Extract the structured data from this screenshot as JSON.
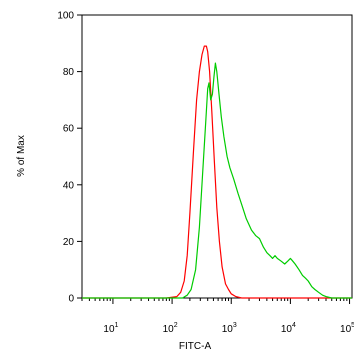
{
  "chart_data": {
    "type": "line",
    "xlabel": "FITC-A",
    "ylabel": "% of Max",
    "x_scale": "log",
    "xlim": [
      3,
      110000
    ],
    "ylim": [
      0,
      100
    ],
    "y_ticks": [
      0,
      20,
      40,
      60,
      80,
      100
    ],
    "x_ticks": [
      {
        "value": 10,
        "base": "10",
        "exp": "1"
      },
      {
        "value": 100,
        "base": "10",
        "exp": "2"
      },
      {
        "value": 1000,
        "base": "10",
        "exp": "3"
      },
      {
        "value": 10000,
        "base": "10",
        "exp": "4"
      },
      {
        "value": 100000,
        "base": "10",
        "exp": "5"
      }
    ],
    "grid": false,
    "series": [
      {
        "color": "#ff0000",
        "points": [
          [
            3,
            0
          ],
          [
            80,
            0
          ],
          [
            120,
            0.5
          ],
          [
            140,
            2
          ],
          [
            160,
            6
          ],
          [
            180,
            15
          ],
          [
            200,
            30
          ],
          [
            230,
            52
          ],
          [
            260,
            70
          ],
          [
            290,
            80
          ],
          [
            320,
            86
          ],
          [
            350,
            89
          ],
          [
            380,
            89
          ],
          [
            400,
            87
          ],
          [
            430,
            80
          ],
          [
            470,
            66
          ],
          [
            520,
            48
          ],
          [
            570,
            32
          ],
          [
            630,
            20
          ],
          [
            700,
            11
          ],
          [
            800,
            5
          ],
          [
            900,
            3
          ],
          [
            1000,
            1.5
          ],
          [
            1200,
            0.5
          ],
          [
            1500,
            0
          ],
          [
            110000,
            0
          ]
        ]
      },
      {
        "color": "#00cc00",
        "points": [
          [
            3,
            0
          ],
          [
            150,
            0
          ],
          [
            180,
            1
          ],
          [
            210,
            3
          ],
          [
            250,
            10
          ],
          [
            290,
            25
          ],
          [
            330,
            45
          ],
          [
            370,
            62
          ],
          [
            400,
            74
          ],
          [
            420,
            76
          ],
          [
            450,
            70
          ],
          [
            480,
            72
          ],
          [
            510,
            78
          ],
          [
            540,
            83
          ],
          [
            570,
            80
          ],
          [
            620,
            72
          ],
          [
            680,
            64
          ],
          [
            750,
            57
          ],
          [
            850,
            50
          ],
          [
            950,
            46
          ],
          [
            1100,
            42
          ],
          [
            1300,
            37
          ],
          [
            1500,
            33
          ],
          [
            1800,
            28
          ],
          [
            2200,
            24
          ],
          [
            2600,
            22
          ],
          [
            3000,
            21
          ],
          [
            3500,
            18
          ],
          [
            4000,
            16
          ],
          [
            4500,
            15
          ],
          [
            5000,
            14
          ],
          [
            5500,
            15
          ],
          [
            6000,
            14
          ],
          [
            7000,
            13
          ],
          [
            8000,
            12
          ],
          [
            9000,
            13
          ],
          [
            10000,
            14
          ],
          [
            11000,
            13
          ],
          [
            12000,
            12
          ],
          [
            14000,
            10
          ],
          [
            16000,
            8
          ],
          [
            18000,
            7
          ],
          [
            20000,
            6
          ],
          [
            23000,
            4
          ],
          [
            26000,
            3
          ],
          [
            30000,
            2
          ],
          [
            35000,
            1
          ],
          [
            40000,
            0.5
          ],
          [
            50000,
            0
          ],
          [
            110000,
            0
          ]
        ]
      }
    ]
  }
}
